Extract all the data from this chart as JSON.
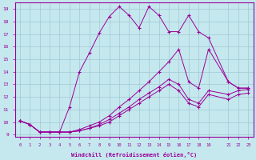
{
  "xlabel": "Windchill (Refroidissement éolien,°C)",
  "background_color": "#c5e8ee",
  "grid_color": "#a0c8d5",
  "line_color": "#990099",
  "xlim": [
    -0.5,
    23.5
  ],
  "ylim": [
    8.8,
    19.5
  ],
  "xticks": [
    0,
    1,
    2,
    3,
    4,
    5,
    6,
    7,
    8,
    9,
    10,
    11,
    12,
    13,
    14,
    15,
    16,
    17,
    18,
    19,
    21,
    22,
    23
  ],
  "yticks": [
    9,
    10,
    11,
    12,
    13,
    14,
    15,
    16,
    17,
    18,
    19
  ],
  "line1_x": [
    0,
    1,
    2,
    3,
    4,
    5,
    6,
    7,
    8,
    9,
    10,
    11,
    12,
    13,
    14,
    15,
    16,
    17,
    18,
    19,
    21,
    22,
    23
  ],
  "line1_y": [
    10.1,
    9.8,
    9.2,
    9.2,
    9.2,
    11.2,
    14.0,
    15.5,
    17.1,
    18.4,
    19.2,
    18.5,
    17.5,
    19.2,
    18.5,
    17.2,
    17.2,
    18.5,
    17.2,
    16.7,
    13.2,
    12.7,
    12.7
  ],
  "line2_x": [
    0,
    1,
    2,
    3,
    4,
    5,
    6,
    7,
    8,
    9,
    10,
    11,
    12,
    13,
    14,
    15,
    16,
    17,
    18,
    19,
    21,
    22,
    23
  ],
  "line2_y": [
    10.1,
    9.8,
    9.2,
    9.2,
    9.2,
    9.2,
    9.4,
    9.7,
    10.0,
    10.5,
    11.2,
    11.8,
    12.5,
    13.2,
    14.0,
    14.8,
    15.8,
    13.2,
    12.7,
    15.8,
    13.2,
    12.7,
    12.7
  ],
  "line3_x": [
    0,
    1,
    2,
    3,
    4,
    5,
    6,
    7,
    8,
    9,
    10,
    11,
    12,
    13,
    14,
    15,
    16,
    17,
    18,
    19,
    21,
    22,
    23
  ],
  "line3_y": [
    10.1,
    9.8,
    9.2,
    9.2,
    9.2,
    9.2,
    9.3,
    9.5,
    9.8,
    10.2,
    10.7,
    11.2,
    11.8,
    12.3,
    12.8,
    13.4,
    13.0,
    11.8,
    11.5,
    12.5,
    12.2,
    12.5,
    12.6
  ],
  "line4_x": [
    0,
    1,
    2,
    3,
    4,
    5,
    6,
    7,
    8,
    9,
    10,
    11,
    12,
    13,
    14,
    15,
    16,
    17,
    18,
    19,
    21,
    22,
    23
  ],
  "line4_y": [
    10.1,
    9.8,
    9.2,
    9.2,
    9.2,
    9.2,
    9.3,
    9.5,
    9.7,
    10.0,
    10.5,
    11.0,
    11.5,
    12.0,
    12.5,
    13.0,
    12.5,
    11.5,
    11.2,
    12.2,
    11.8,
    12.2,
    12.3
  ]
}
